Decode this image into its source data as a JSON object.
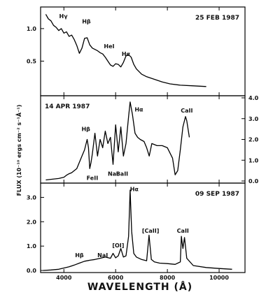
{
  "chart_data": {
    "type": "line",
    "xlabel": "WAVELENGTH (Å)",
    "ylabel": "FLUX (10⁻¹⁰ ergs cm⁻² s⁻¹Å⁻¹)",
    "xlim": [
      3100,
      11000
    ],
    "x_ticks": [
      "4000",
      "6000",
      "8000",
      "10000"
    ],
    "x_tick_values": [
      4000,
      6000,
      8000,
      10000
    ],
    "grid": false,
    "panels": [
      {
        "date": "25 FEB 1987",
        "ylim": [
          0,
          1.3
        ],
        "y_ticks": [
          "0.5",
          "1.0"
        ],
        "y_tick_values": [
          0.5,
          1.0
        ],
        "y_axis_side": "left",
        "annotations": [
          {
            "text": "Hγ",
            "x": 3980,
            "y": 1.16
          },
          {
            "text": "Hβ",
            "x": 4870,
            "y": 1.08
          },
          {
            "text": "HeI",
            "x": 5750,
            "y": 0.7
          },
          {
            "text": "Hα",
            "x": 6400,
            "y": 0.58
          }
        ],
        "x": [
          3300,
          3400,
          3500,
          3600,
          3700,
          3800,
          3900,
          4000,
          4100,
          4200,
          4300,
          4400,
          4500,
          4600,
          4700,
          4800,
          4900,
          5000,
          5100,
          5200,
          5300,
          5400,
          5500,
          5600,
          5700,
          5800,
          5900,
          6000,
          6100,
          6200,
          6300,
          6400,
          6500,
          6600,
          6700,
          6800,
          7000,
          7200,
          7500,
          7800,
          8100,
          8500,
          9000,
          9500
        ],
        "values": [
          1.22,
          1.15,
          1.12,
          1.05,
          1.02,
          0.97,
          1.0,
          0.93,
          0.95,
          0.88,
          0.9,
          0.83,
          0.74,
          0.62,
          0.7,
          0.85,
          0.86,
          0.75,
          0.7,
          0.68,
          0.66,
          0.63,
          0.61,
          0.56,
          0.5,
          0.44,
          0.42,
          0.46,
          0.45,
          0.41,
          0.48,
          0.58,
          0.6,
          0.56,
          0.45,
          0.38,
          0.3,
          0.26,
          0.22,
          0.18,
          0.15,
          0.13,
          0.12,
          0.11
        ]
      },
      {
        "date": "14 APR 1987",
        "ylim": [
          0,
          4.0
        ],
        "y_ticks": [
          "0.0",
          "1.0",
          "2.0",
          "3.0",
          "4.0"
        ],
        "y_tick_values": [
          0,
          1,
          2,
          3,
          4
        ],
        "y_axis_side": "right",
        "annotations": [
          {
            "text": "Hβ",
            "x": 4850,
            "y": 2.4
          },
          {
            "text": "FeII",
            "x": 5100,
            "y": 0.05
          },
          {
            "text": "NaI",
            "x": 5900,
            "y": 0.25
          },
          {
            "text": "BaII",
            "x": 6250,
            "y": 0.25
          },
          {
            "text": "Hα",
            "x": 6900,
            "y": 3.35
          },
          {
            "text": "CaII",
            "x": 8750,
            "y": 3.3
          }
        ],
        "x": [
          3300,
          3500,
          3800,
          4000,
          4100,
          4200,
          4300,
          4400,
          4500,
          4600,
          4700,
          4800,
          4900,
          4950,
          5000,
          5050,
          5100,
          5200,
          5300,
          5400,
          5500,
          5600,
          5700,
          5800,
          5900,
          6000,
          6100,
          6200,
          6300,
          6400,
          6500,
          6560,
          6650,
          6750,
          6850,
          6950,
          7100,
          7200,
          7300,
          7400,
          7600,
          7800,
          8000,
          8200,
          8300,
          8400,
          8500,
          8600,
          8700,
          8750,
          8850
        ],
        "values": [
          0.05,
          0.08,
          0.12,
          0.18,
          0.28,
          0.35,
          0.4,
          0.5,
          0.6,
          0.9,
          1.2,
          1.5,
          2.0,
          1.6,
          0.6,
          0.9,
          1.3,
          2.3,
          1.2,
          2.0,
          1.6,
          2.4,
          1.8,
          2.1,
          0.8,
          2.7,
          1.4,
          2.6,
          1.2,
          1.8,
          3.1,
          3.8,
          3.2,
          2.3,
          2.1,
          2.0,
          1.9,
          1.6,
          1.2,
          1.8,
          1.7,
          1.7,
          1.6,
          1.1,
          0.3,
          0.5,
          1.5,
          2.6,
          3.1,
          2.9,
          2.1
        ]
      },
      {
        "date": "09 SEP 1987",
        "ylim": [
          0,
          3.5
        ],
        "y_ticks": [
          "0.0",
          "1.0",
          "2.0",
          "3.0"
        ],
        "y_tick_values": [
          0,
          1,
          2,
          3
        ],
        "y_axis_side": "left",
        "annotations": [
          {
            "text": "Hβ",
            "x": 4600,
            "y": 0.55
          },
          {
            "text": "NaI",
            "x": 5500,
            "y": 0.55
          },
          {
            "text": "[OI]",
            "x": 6100,
            "y": 0.95
          },
          {
            "text": "Hα",
            "x": 6720,
            "y": 3.25
          },
          {
            "text": "[CaII]",
            "x": 7350,
            "y": 1.55
          },
          {
            "text": "CaII",
            "x": 8600,
            "y": 1.55
          }
        ],
        "x": [
          3200,
          3500,
          3800,
          4000,
          4200,
          4400,
          4600,
          4800,
          5000,
          5200,
          5400,
          5600,
          5800,
          5900,
          6000,
          6100,
          6200,
          6300,
          6400,
          6500,
          6560,
          6620,
          6700,
          6800,
          7000,
          7200,
          7291,
          7380,
          7500,
          7700,
          8000,
          8300,
          8500,
          8542,
          8600,
          8662,
          8750,
          9000,
          9500,
          10000,
          10500
        ],
        "values": [
          0.0,
          0.02,
          0.05,
          0.1,
          0.15,
          0.22,
          0.3,
          0.38,
          0.42,
          0.45,
          0.5,
          0.55,
          0.5,
          0.7,
          0.52,
          0.6,
          0.9,
          0.55,
          0.6,
          1.4,
          3.3,
          1.6,
          0.7,
          0.55,
          0.45,
          0.4,
          1.45,
          0.45,
          0.35,
          0.3,
          0.28,
          0.25,
          0.35,
          1.4,
          0.9,
          1.35,
          0.5,
          0.2,
          0.12,
          0.08,
          0.05
        ]
      }
    ]
  }
}
